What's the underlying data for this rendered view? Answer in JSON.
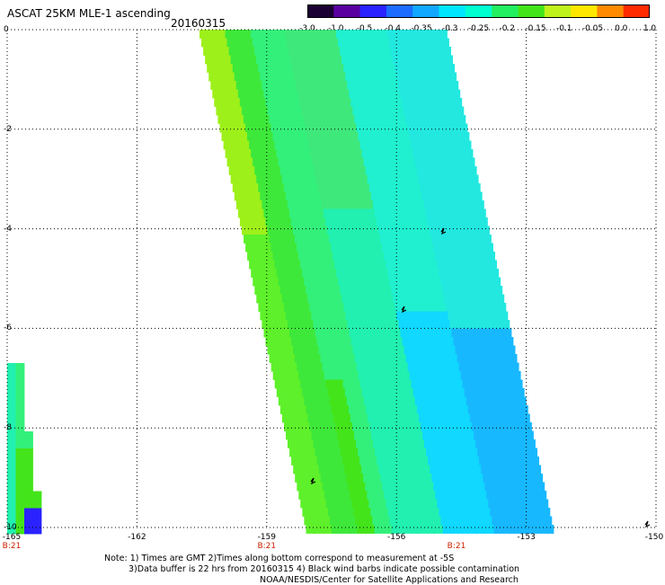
{
  "header": {
    "title": "ASCAT 25KM MLE-1 ascending",
    "date": "20160315"
  },
  "colorbar": {
    "labels": [
      "-3.0",
      "-1.0",
      "-0.5",
      "-0.4",
      "-0.35",
      "-0.3",
      "-0.25",
      "-0.2",
      "-0.15",
      "-0.1",
      "-0.05",
      "0.0",
      "1.0"
    ],
    "colors": [
      "#1a0033",
      "#5a00a0",
      "#2a22ff",
      "#1c6cff",
      "#12a8ff",
      "#00e6ff",
      "#00ffd0",
      "#22f060",
      "#44e41a",
      "#bff21a",
      "#ffe800",
      "#ff8a00",
      "#ff2a00"
    ]
  },
  "map": {
    "x_ticks": [
      "-165",
      "-162",
      "-159",
      "-156",
      "-153",
      "-150"
    ],
    "y_ticks": [
      "0",
      "-2",
      "-4",
      "-6",
      "-8",
      "-10"
    ],
    "time_labels": [
      "B:21",
      "B:21",
      "B:21"
    ]
  },
  "footer": {
    "line1": "Note: 1) Times are GMT 2)Times along bottom correspond to measurement at -5S",
    "line2": "3)Data buffer is 22 hrs from 20160315 4) Black wind barbs indicate possible contamination",
    "line3": "NOAA/NESDIS/Center for Satellite Applications and Research"
  }
}
